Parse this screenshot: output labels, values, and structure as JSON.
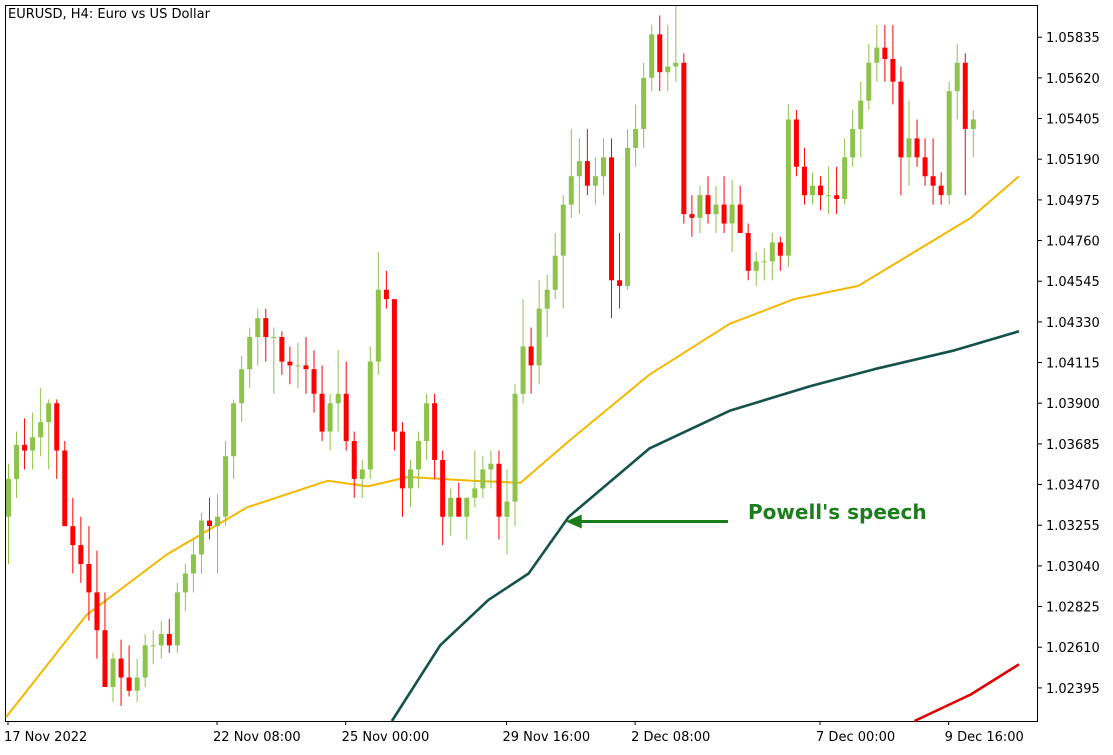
{
  "window": {
    "symbol": "EURUSD",
    "timeframe": "H4",
    "title": "EURUSD, H4:  Euro vs US Dollar"
  },
  "colors": {
    "bull": "#8dc34a",
    "bear": "#ff0000",
    "ma_fast": "#f5b800",
    "ma_mid": "#14524a",
    "ma_slow": "#e00000",
    "annotation": "#1c7d1c",
    "grid": "#d8d8d8"
  },
  "chart_data": {
    "type": "candlestick",
    "title": "EURUSD, H4:  Euro vs US Dollar",
    "y_ticks": [
      "1.05835",
      "1.05620",
      "1.05405",
      "1.05190",
      "1.04975",
      "1.04760",
      "1.04545",
      "1.04330",
      "1.04115",
      "1.03900",
      "1.03685",
      "1.03470",
      "1.03255",
      "1.03040",
      "1.02825",
      "1.02610",
      "1.02395"
    ],
    "ylim": [
      1.0222,
      1.06
    ],
    "x_ticks": [
      {
        "label": "17 Nov 2022",
        "index": 0
      },
      {
        "label": "22 Nov 08:00",
        "index": 26
      },
      {
        "label": "25 Nov 00:00",
        "index": 42
      },
      {
        "label": "29 Nov 16:00",
        "index": 62
      },
      {
        "label": "2 Dec 08:00",
        "index": 78
      },
      {
        "label": "7 Dec 00:00",
        "index": 101
      },
      {
        "label": "9 Dec 16:00",
        "index": 117
      }
    ],
    "candles": [
      [
        1.033,
        1.0358,
        1.0305,
        1.035
      ],
      [
        1.035,
        1.0375,
        1.034,
        1.0368
      ],
      [
        1.0368,
        1.0382,
        1.0355,
        1.0365
      ],
      [
        1.0365,
        1.0385,
        1.0355,
        1.0372
      ],
      [
        1.0372,
        1.0398,
        1.0362,
        1.038
      ],
      [
        1.038,
        1.0392,
        1.0355,
        1.039
      ],
      [
        1.039,
        1.0392,
        1.035,
        1.0365
      ],
      [
        1.0365,
        1.037,
        1.0325,
        1.0325
      ],
      [
        1.0325,
        1.034,
        1.03,
        1.0315
      ],
      [
        1.0315,
        1.033,
        1.0295,
        1.0305
      ],
      [
        1.0305,
        1.0325,
        1.0275,
        1.029
      ],
      [
        1.029,
        1.0312,
        1.0255,
        1.027
      ],
      [
        1.027,
        1.029,
        1.024,
        1.024
      ],
      [
        1.024,
        1.0258,
        1.0232,
        1.0255
      ],
      [
        1.0255,
        1.0265,
        1.023,
        1.0245
      ],
      [
        1.0245,
        1.0262,
        1.0235,
        1.0238
      ],
      [
        1.0238,
        1.0255,
        1.0232,
        1.0245
      ],
      [
        1.0245,
        1.0268,
        1.024,
        1.0262
      ],
      [
        1.0262,
        1.027,
        1.0252,
        1.0262
      ],
      [
        1.0262,
        1.0275,
        1.0255,
        1.0268
      ],
      [
        1.0268,
        1.0276,
        1.0258,
        1.0262
      ],
      [
        1.0262,
        1.0295,
        1.0258,
        1.029
      ],
      [
        1.029,
        1.0305,
        1.028,
        1.03
      ],
      [
        1.03,
        1.0318,
        1.029,
        1.031
      ],
      [
        1.031,
        1.0332,
        1.03,
        1.0328
      ],
      [
        1.0328,
        1.034,
        1.0318,
        1.0325
      ],
      [
        1.0325,
        1.0342,
        1.03,
        1.033
      ],
      [
        1.033,
        1.037,
        1.0325,
        1.0362
      ],
      [
        1.0362,
        1.0392,
        1.035,
        1.039
      ],
      [
        1.039,
        1.0415,
        1.038,
        1.0408
      ],
      [
        1.0408,
        1.043,
        1.0398,
        1.0425
      ],
      [
        1.0425,
        1.044,
        1.041,
        1.0435
      ],
      [
        1.0435,
        1.044,
        1.0412,
        1.0425
      ],
      [
        1.0425,
        1.043,
        1.0395,
        1.0425
      ],
      [
        1.0425,
        1.0428,
        1.0405,
        1.0412
      ],
      [
        1.0412,
        1.042,
        1.04,
        1.041
      ],
      [
        1.041,
        1.0422,
        1.0398,
        1.041
      ],
      [
        1.041,
        1.0425,
        1.0395,
        1.0408
      ],
      [
        1.0408,
        1.0418,
        1.0385,
        1.0395
      ],
      [
        1.0395,
        1.041,
        1.037,
        1.0375
      ],
      [
        1.0375,
        1.0395,
        1.0365,
        1.039
      ],
      [
        1.039,
        1.0418,
        1.0375,
        1.0395
      ],
      [
        1.0395,
        1.0412,
        1.0365,
        1.037
      ],
      [
        1.037,
        1.0375,
        1.034,
        1.035
      ],
      [
        1.035,
        1.036,
        1.034,
        1.0355
      ],
      [
        1.0355,
        1.042,
        1.035,
        1.0412
      ],
      [
        1.0412,
        1.047,
        1.0405,
        1.045
      ],
      [
        1.045,
        1.046,
        1.044,
        1.0445
      ],
      [
        1.0445,
        1.0445,
        1.0365,
        1.0375
      ],
      [
        1.0375,
        1.038,
        1.033,
        1.0345
      ],
      [
        1.0345,
        1.036,
        1.0335,
        1.0355
      ],
      [
        1.0355,
        1.0375,
        1.0345,
        1.037
      ],
      [
        1.037,
        1.0395,
        1.036,
        1.039
      ],
      [
        1.039,
        1.0395,
        1.035,
        1.036
      ],
      [
        1.036,
        1.0365,
        1.0315,
        1.033
      ],
      [
        1.033,
        1.0345,
        1.032,
        1.034
      ],
      [
        1.034,
        1.0348,
        1.033,
        1.033
      ],
      [
        1.033,
        1.034,
        1.0318,
        1.034
      ],
      [
        1.034,
        1.0365,
        1.0335,
        1.0345
      ],
      [
        1.0345,
        1.0362,
        1.034,
        1.0355
      ],
      [
        1.0355,
        1.0365,
        1.0345,
        1.0358
      ],
      [
        1.0358,
        1.0365,
        1.0318,
        1.033
      ],
      [
        1.033,
        1.0355,
        1.031,
        1.0338
      ],
      [
        1.0338,
        1.04,
        1.0325,
        1.0395
      ],
      [
        1.0395,
        1.0445,
        1.039,
        1.042
      ],
      [
        1.042,
        1.043,
        1.0395,
        1.041
      ],
      [
        1.041,
        1.0455,
        1.04,
        1.044
      ],
      [
        1.044,
        1.0458,
        1.0425,
        1.045
      ],
      [
        1.045,
        1.048,
        1.0445,
        1.0468
      ],
      [
        1.0468,
        1.05,
        1.044,
        1.0495
      ],
      [
        1.0495,
        1.0535,
        1.0488,
        1.051
      ],
      [
        1.051,
        1.053,
        1.049,
        1.0518
      ],
      [
        1.0518,
        1.0535,
        1.05,
        1.0505
      ],
      [
        1.0505,
        1.052,
        1.0495,
        1.051
      ],
      [
        1.051,
        1.053,
        1.05,
        1.052
      ],
      [
        1.052,
        1.053,
        1.0435,
        1.0455
      ],
      [
        1.0455,
        1.048,
        1.044,
        1.0452
      ],
      [
        1.0452,
        1.0535,
        1.045,
        1.0525
      ],
      [
        1.0525,
        1.0548,
        1.0515,
        1.0535
      ],
      [
        1.0535,
        1.057,
        1.0525,
        1.0562
      ],
      [
        1.0562,
        1.059,
        1.0555,
        1.0585
      ],
      [
        1.0585,
        1.0595,
        1.0555,
        1.0565
      ],
      [
        1.0565,
        1.059,
        1.0555,
        1.0568
      ],
      [
        1.0568,
        1.06,
        1.056,
        1.057
      ],
      [
        1.057,
        1.0575,
        1.0485,
        1.049
      ],
      [
        1.049,
        1.05,
        1.0478,
        1.0488
      ],
      [
        1.0488,
        1.0505,
        1.048,
        1.05
      ],
      [
        1.05,
        1.051,
        1.0485,
        1.049
      ],
      [
        1.049,
        1.0505,
        1.048,
        1.0495
      ],
      [
        1.0495,
        1.051,
        1.048,
        1.0485
      ],
      [
        1.0485,
        1.0508,
        1.047,
        1.0495
      ],
      [
        1.0495,
        1.0505,
        1.048,
        1.048
      ],
      [
        1.048,
        1.0485,
        1.0455,
        1.046
      ],
      [
        1.046,
        1.047,
        1.0452,
        1.0465
      ],
      [
        1.0465,
        1.0472,
        1.0455,
        1.0465
      ],
      [
        1.0465,
        1.048,
        1.0455,
        1.0475
      ],
      [
        1.0475,
        1.0478,
        1.046,
        1.0468
      ],
      [
        1.0468,
        1.0548,
        1.0462,
        1.054
      ],
      [
        1.054,
        1.0545,
        1.051,
        1.0515
      ],
      [
        1.0515,
        1.0525,
        1.0495,
        1.05
      ],
      [
        1.05,
        1.0512,
        1.0495,
        1.0505
      ],
      [
        1.0505,
        1.051,
        1.0492,
        1.05
      ],
      [
        1.05,
        1.0515,
        1.049,
        1.05
      ],
      [
        1.05,
        1.0515,
        1.049,
        1.0498
      ],
      [
        1.0498,
        1.053,
        1.0495,
        1.052
      ],
      [
        1.052,
        1.0545,
        1.0515,
        1.0535
      ],
      [
        1.0535,
        1.056,
        1.052,
        1.055
      ],
      [
        1.055,
        1.058,
        1.0545,
        1.057
      ],
      [
        1.057,
        1.059,
        1.056,
        1.0578
      ],
      [
        1.0578,
        1.059,
        1.056,
        1.0572
      ],
      [
        1.0572,
        1.059,
        1.0548,
        1.056
      ],
      [
        1.056,
        1.0568,
        1.05,
        1.052
      ],
      [
        1.052,
        1.055,
        1.0505,
        1.053
      ],
      [
        1.053,
        1.054,
        1.0515,
        1.052
      ],
      [
        1.052,
        1.053,
        1.0505,
        1.051
      ],
      [
        1.051,
        1.053,
        1.0495,
        1.0505
      ],
      [
        1.0505,
        1.0512,
        1.0495,
        1.05
      ],
      [
        1.05,
        1.056,
        1.0495,
        1.0555
      ],
      [
        1.0555,
        1.058,
        1.054,
        1.057
      ],
      [
        1.057,
        1.0575,
        1.05,
        1.0535
      ],
      [
        1.0535,
        1.0545,
        1.052,
        1.054
      ]
    ],
    "series": [
      {
        "color": "#f5b800",
        "points": [
          [
            0,
            1.0224
          ],
          [
            10,
            1.0278
          ],
          [
            20,
            1.031
          ],
          [
            30,
            1.0335
          ],
          [
            40,
            1.0349
          ],
          [
            45,
            1.0346
          ],
          [
            50,
            1.0351
          ],
          [
            58,
            1.0349
          ],
          [
            64,
            1.0348
          ],
          [
            70,
            1.037
          ],
          [
            80,
            1.0405
          ],
          [
            90,
            1.0432
          ],
          [
            98,
            1.0445
          ],
          [
            106,
            1.0452
          ],
          [
            113,
            1.047
          ],
          [
            120,
            1.0488
          ],
          [
            126,
            1.051
          ]
        ]
      },
      {
        "color": "#14524a",
        "points": [
          [
            48,
            1.0222
          ],
          [
            54,
            1.0262
          ],
          [
            60,
            1.0286
          ],
          [
            65,
            1.03
          ],
          [
            70,
            1.033
          ],
          [
            80,
            1.0366
          ],
          [
            90,
            1.0386
          ],
          [
            100,
            1.0399
          ],
          [
            108,
            1.0408
          ],
          [
            118,
            1.0418
          ],
          [
            126,
            1.0428
          ]
        ]
      },
      {
        "color": "#e00000",
        "points": [
          [
            113,
            1.0222
          ],
          [
            120,
            1.0236
          ],
          [
            126,
            1.0252
          ]
        ]
      }
    ],
    "annotations": [
      {
        "text": "Powell's speech",
        "target_index": 68,
        "target_price": 1.03275
      }
    ]
  }
}
